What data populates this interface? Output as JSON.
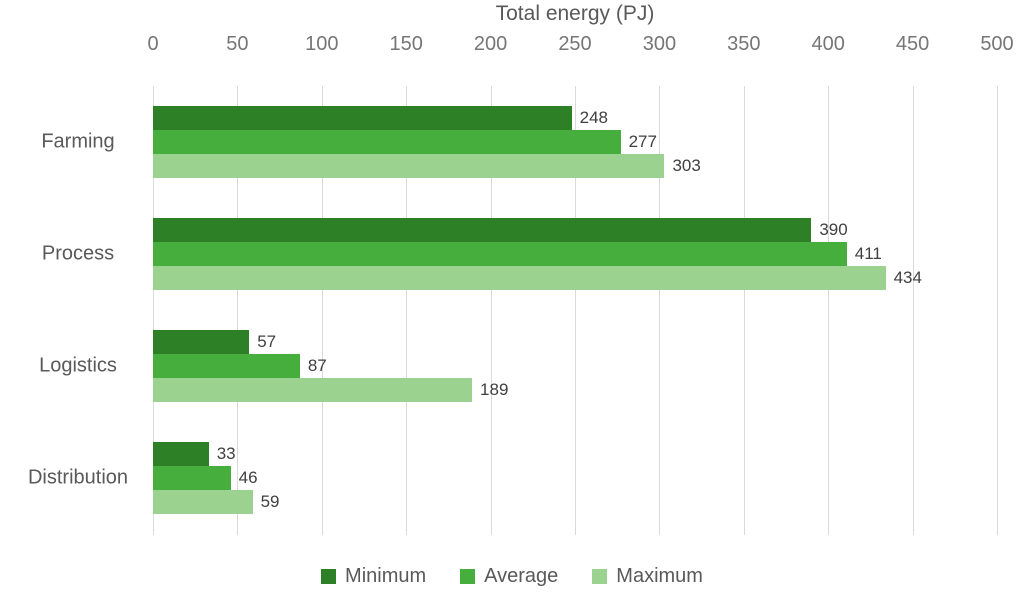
{
  "chart_data": {
    "type": "bar",
    "orientation": "horizontal",
    "title": "Total energy (PJ)",
    "xlabel": "Total energy (PJ)",
    "ylabel": "",
    "categories": [
      "Farming",
      "Process",
      "Logistics",
      "Distribution"
    ],
    "series": [
      {
        "name": "Minimum",
        "color": "#2e8027",
        "values": [
          248,
          390,
          57,
          33
        ]
      },
      {
        "name": "Average",
        "color": "#45ae3c",
        "values": [
          277,
          411,
          87,
          46
        ]
      },
      {
        "name": "Maximum",
        "color": "#9bd28f",
        "values": [
          303,
          434,
          189,
          59
        ]
      }
    ],
    "xlim": [
      0,
      500
    ],
    "xticks": [
      0,
      50,
      100,
      150,
      200,
      250,
      300,
      350,
      400,
      450,
      500
    ],
    "grid": true,
    "data_labels": true,
    "legend_position": "bottom",
    "colors": {
      "gridline": "#d9d9d9",
      "tick_text": "#767676",
      "category_text": "#595959",
      "data_label_text": "#404040",
      "title_text": "#595959",
      "background": "#ffffff"
    }
  }
}
